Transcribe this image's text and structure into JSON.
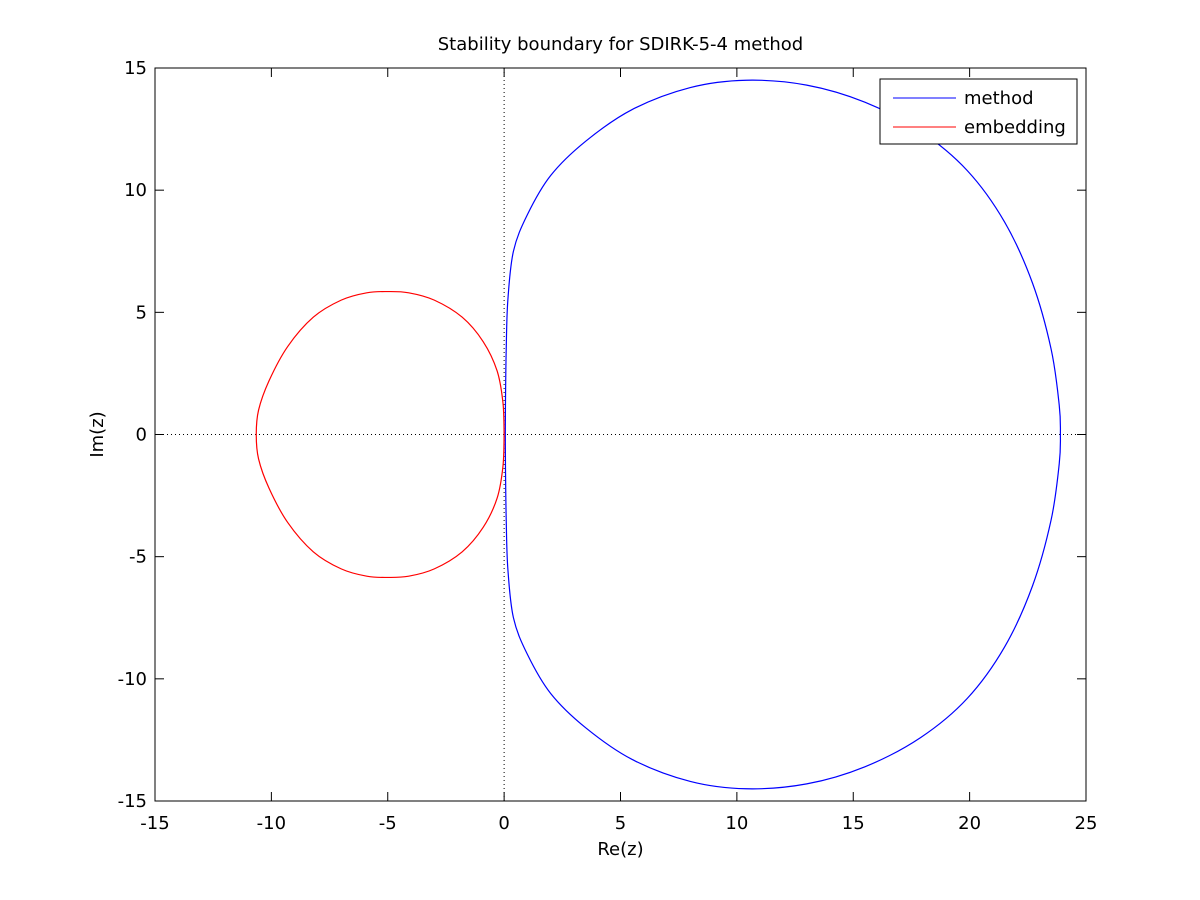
{
  "chart_data": {
    "type": "line",
    "title": "Stability boundary for SDIRK-5-4 method",
    "xlabel": "Re(z)",
    "ylabel": "Im(z)",
    "xlim": [
      -15,
      25
    ],
    "ylim": [
      -15,
      15
    ],
    "xticks": [
      -15,
      -10,
      -5,
      0,
      5,
      10,
      15,
      20,
      25
    ],
    "yticks": [
      -15,
      -10,
      -5,
      0,
      5,
      10,
      15
    ],
    "xtick_labels": [
      "-15",
      "-10",
      "-5",
      "0",
      "5",
      "10",
      "15",
      "20",
      "25"
    ],
    "ytick_labels": [
      "-15",
      "-10",
      "-5",
      "0",
      "5",
      "10",
      "15"
    ],
    "grid": false,
    "reference_lines": "dotted lines at Re(z)=0 and Im(z)=0",
    "legend_position": "top-right",
    "series": [
      {
        "name": "method",
        "color": "#0000ff",
        "x": [
          0.05,
          0.06,
          0.09,
          0.16,
          0.4,
          1.0,
          2.0,
          3.5,
          5.5,
          8.0,
          10.4,
          13.0,
          15.5,
          17.9,
          19.9,
          21.5,
          22.7,
          23.5,
          23.85,
          23.9,
          23.85,
          23.5,
          22.7,
          21.5,
          19.9,
          17.9,
          15.5,
          13.0,
          10.4,
          8.0,
          5.5,
          3.5,
          2.0,
          1.0,
          0.4,
          0.16,
          0.09,
          0.06,
          0.05
        ],
        "y": [
          0,
          1.5,
          3.5,
          5.5,
          7.5,
          9.0,
          10.6,
          12.0,
          13.3,
          14.2,
          14.5,
          14.3,
          13.6,
          12.4,
          10.8,
          8.7,
          6.2,
          3.5,
          1.2,
          0,
          -1.2,
          -3.5,
          -6.2,
          -8.7,
          -10.8,
          -12.4,
          -13.6,
          -14.3,
          -14.5,
          -14.2,
          -13.3,
          -12.0,
          -10.6,
          -9.0,
          -7.5,
          -5.5,
          -3.5,
          -1.5,
          0
        ]
      },
      {
        "name": "embedding",
        "color": "#ff0000",
        "x": [
          0.0,
          -0.05,
          -0.3,
          -0.9,
          -1.8,
          -3.0,
          -4.1,
          -5.0,
          -5.9,
          -7.0,
          -8.2,
          -9.3,
          -10.1,
          -10.55,
          -10.65,
          -10.55,
          -10.1,
          -9.3,
          -8.2,
          -7.0,
          -5.9,
          -5.0,
          -4.1,
          -3.0,
          -1.8,
          -0.9,
          -0.3,
          -0.05,
          0.0
        ],
        "y": [
          0.0,
          1.3,
          2.6,
          3.8,
          4.8,
          5.5,
          5.8,
          5.85,
          5.8,
          5.5,
          4.8,
          3.6,
          2.2,
          1.0,
          0.0,
          -1.0,
          -2.2,
          -3.6,
          -4.8,
          -5.5,
          -5.8,
          -5.85,
          -5.8,
          -5.5,
          -4.8,
          -3.8,
          -2.6,
          -1.3,
          0.0
        ]
      }
    ]
  }
}
